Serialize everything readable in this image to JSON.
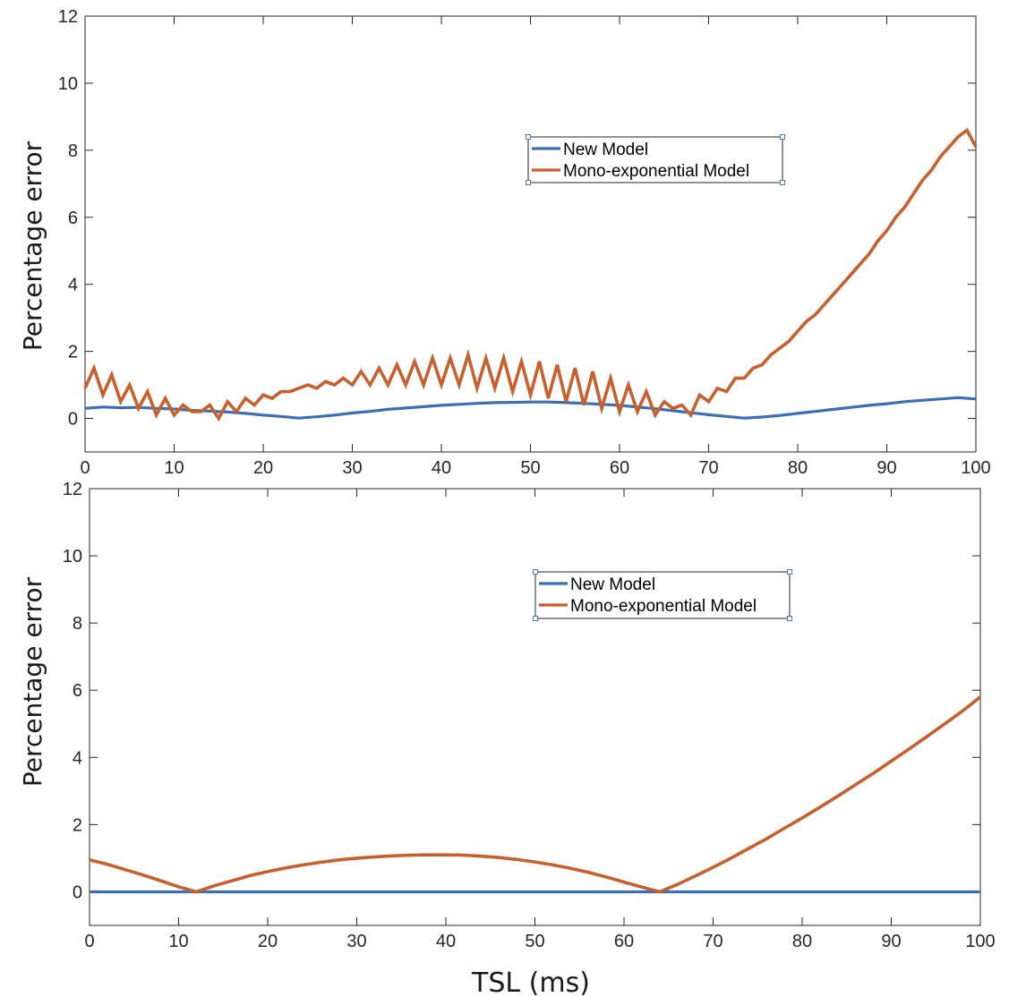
{
  "chart_data": [
    {
      "type": "line",
      "title": "",
      "xlabel": "",
      "ylabel": "Percentage error",
      "xlim": [
        0,
        100
      ],
      "ylim": [
        -1,
        12
      ],
      "xticks": [
        0,
        10,
        20,
        30,
        40,
        50,
        60,
        70,
        80,
        90,
        100
      ],
      "yticks": [
        0,
        2,
        4,
        6,
        8,
        10,
        12
      ],
      "legend": "upper-center",
      "series": [
        {
          "name": "New Model",
          "color": "#3a6fb5",
          "x": [
            0,
            2,
            4,
            6,
            8,
            10,
            12,
            14,
            16,
            18,
            20,
            22,
            24,
            26,
            28,
            30,
            32,
            34,
            36,
            38,
            40,
            42,
            44,
            46,
            48,
            50,
            52,
            54,
            56,
            58,
            60,
            62,
            64,
            66,
            68,
            70,
            72,
            74,
            76,
            78,
            80,
            82,
            84,
            86,
            88,
            90,
            92,
            94,
            96,
            98,
            100
          ],
          "y": [
            0.3,
            0.34,
            0.32,
            0.33,
            0.3,
            0.28,
            0.24,
            0.22,
            0.19,
            0.15,
            0.1,
            0.06,
            0.01,
            0.05,
            0.1,
            0.16,
            0.21,
            0.27,
            0.31,
            0.35,
            0.39,
            0.42,
            0.45,
            0.47,
            0.48,
            0.49,
            0.49,
            0.47,
            0.45,
            0.42,
            0.39,
            0.34,
            0.29,
            0.23,
            0.17,
            0.11,
            0.06,
            0.01,
            0.04,
            0.09,
            0.15,
            0.21,
            0.27,
            0.33,
            0.39,
            0.44,
            0.5,
            0.54,
            0.58,
            0.62,
            0.58
          ]
        },
        {
          "name": "Mono-exponential Model",
          "color": "#c8602d",
          "x": [
            0,
            1,
            2,
            3,
            4,
            5,
            6,
            7,
            8,
            9,
            10,
            11,
            12,
            13,
            14,
            15,
            16,
            17,
            18,
            19,
            20,
            21,
            22,
            23,
            24,
            25,
            26,
            27,
            28,
            29,
            30,
            31,
            32,
            33,
            34,
            35,
            36,
            37,
            38,
            39,
            40,
            41,
            42,
            43,
            44,
            45,
            46,
            47,
            48,
            49,
            50,
            51,
            52,
            53,
            54,
            55,
            56,
            57,
            58,
            59,
            60,
            61,
            62,
            63,
            64,
            65,
            66,
            67,
            68,
            69,
            70,
            71,
            72,
            73,
            74,
            75,
            76,
            77,
            78,
            79,
            80,
            81,
            82,
            83,
            84,
            85,
            86,
            87,
            88,
            89,
            90,
            91,
            92,
            93,
            94,
            95,
            96,
            97,
            98,
            99,
            100
          ],
          "y": [
            0.9,
            1.5,
            0.7,
            1.3,
            0.5,
            1.0,
            0.3,
            0.8,
            0.1,
            0.6,
            0.1,
            0.4,
            0.2,
            0.2,
            0.4,
            0.0,
            0.5,
            0.2,
            0.6,
            0.4,
            0.7,
            0.6,
            0.8,
            0.8,
            0.9,
            1.0,
            0.9,
            1.1,
            1.0,
            1.2,
            1.0,
            1.4,
            1.0,
            1.5,
            1.0,
            1.6,
            1.0,
            1.7,
            1.0,
            1.8,
            1.0,
            1.8,
            1.0,
            1.9,
            0.9,
            1.8,
            0.9,
            1.8,
            0.8,
            1.7,
            0.7,
            1.7,
            0.6,
            1.6,
            0.5,
            1.5,
            0.4,
            1.4,
            0.3,
            1.2,
            0.2,
            1.0,
            0.2,
            0.8,
            0.1,
            0.5,
            0.3,
            0.4,
            0.1,
            0.7,
            0.5,
            0.9,
            0.8,
            1.2,
            1.2,
            1.5,
            1.6,
            1.9,
            2.1,
            2.3,
            2.6,
            2.9,
            3.1,
            3.4,
            3.7,
            4.0,
            4.3,
            4.6,
            4.9,
            5.3,
            5.6,
            6.0,
            6.3,
            6.7,
            7.1,
            7.4,
            7.8,
            8.1,
            8.4,
            8.6,
            8.1
          ]
        }
      ]
    },
    {
      "type": "line",
      "title": "",
      "xlabel": "TSL (ms)",
      "ylabel": "Percentage error",
      "xlim": [
        0,
        100
      ],
      "ylim": [
        -1,
        12
      ],
      "xticks": [
        0,
        10,
        20,
        30,
        40,
        50,
        60,
        70,
        80,
        90,
        100
      ],
      "yticks": [
        0,
        2,
        4,
        6,
        8,
        10,
        12
      ],
      "legend": "upper-center",
      "series": [
        {
          "name": "New Model",
          "color": "#3a6fb5",
          "x": [
            0,
            10,
            20,
            30,
            40,
            50,
            60,
            70,
            80,
            90,
            100
          ],
          "y": [
            0,
            0,
            0,
            0,
            0,
            0,
            0,
            0,
            0,
            0,
            0
          ]
        },
        {
          "name": "Mono-exponential Model",
          "color": "#c8602d",
          "x": [
            0,
            2,
            4,
            6,
            8,
            10,
            12,
            14,
            16,
            18,
            20,
            22,
            24,
            26,
            28,
            30,
            32,
            34,
            36,
            38,
            40,
            42,
            44,
            46,
            48,
            50,
            52,
            54,
            56,
            58,
            60,
            62,
            64,
            66,
            68,
            70,
            72,
            74,
            76,
            78,
            80,
            82,
            84,
            86,
            88,
            90,
            92,
            94,
            96,
            98,
            100
          ],
          "y": [
            0.95,
            0.82,
            0.66,
            0.5,
            0.33,
            0.15,
            0.0,
            0.18,
            0.33,
            0.48,
            0.6,
            0.71,
            0.8,
            0.88,
            0.95,
            1.0,
            1.04,
            1.07,
            1.09,
            1.1,
            1.1,
            1.09,
            1.06,
            1.02,
            0.96,
            0.89,
            0.8,
            0.7,
            0.58,
            0.44,
            0.29,
            0.14,
            0.0,
            0.22,
            0.47,
            0.73,
            1.0,
            1.29,
            1.58,
            1.89,
            2.2,
            2.52,
            2.85,
            3.19,
            3.53,
            3.89,
            4.25,
            4.62,
            5.0,
            5.38,
            5.8
          ]
        }
      ]
    }
  ]
}
